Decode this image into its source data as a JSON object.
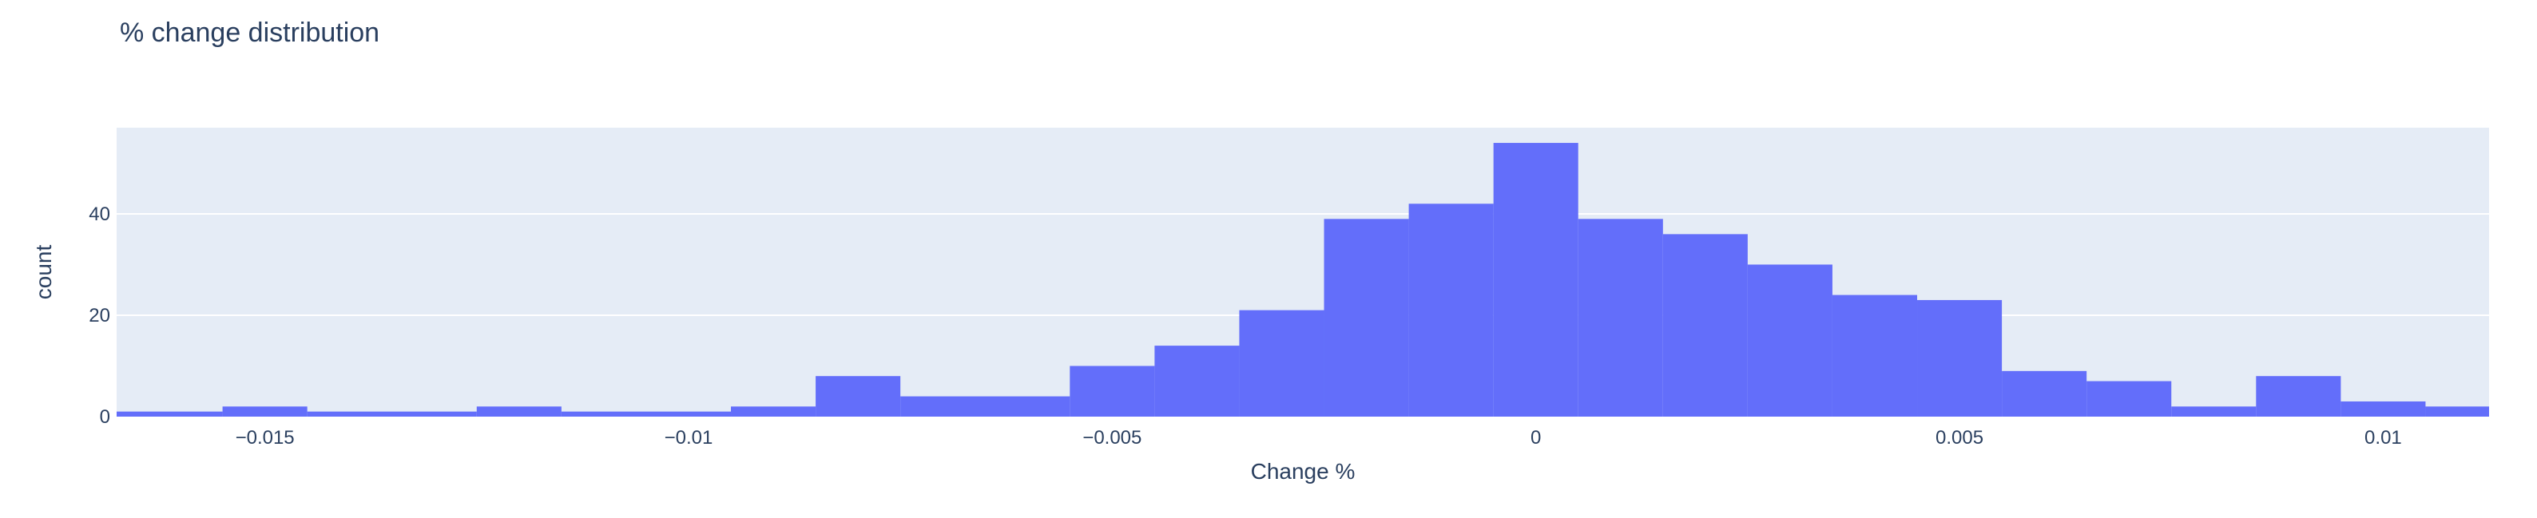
{
  "chart_data": {
    "type": "bar",
    "title": "% change distribution",
    "xlabel": "Change %",
    "ylabel": "count",
    "bin_width": 0.001,
    "xlim": [
      -0.01675,
      0.01125
    ],
    "ylim": [
      0,
      57
    ],
    "x_ticks": [
      -0.015,
      -0.01,
      -0.005,
      0,
      0.005,
      0.01
    ],
    "x_tick_labels": [
      "−0.015",
      "−0.01",
      "−0.005",
      "0",
      "0.005",
      "0.01"
    ],
    "y_ticks": [
      0,
      20,
      40
    ],
    "y_tick_labels": [
      "0",
      "20",
      "40"
    ],
    "grid": true,
    "bins": [
      {
        "x0": -0.0175,
        "x1": -0.0155,
        "count": 1
      },
      {
        "x0": -0.0155,
        "x1": -0.0145,
        "count": 2
      },
      {
        "x0": -0.0145,
        "x1": -0.0125,
        "count": 1
      },
      {
        "x0": -0.0125,
        "x1": -0.0115,
        "count": 2
      },
      {
        "x0": -0.0115,
        "x1": -0.0095,
        "count": 1
      },
      {
        "x0": -0.0095,
        "x1": -0.0085,
        "count": 2
      },
      {
        "x0": -0.0085,
        "x1": -0.0075,
        "count": 8
      },
      {
        "x0": -0.0075,
        "x1": -0.0055,
        "count": 4
      },
      {
        "x0": -0.0055,
        "x1": -0.0045,
        "count": 10
      },
      {
        "x0": -0.0045,
        "x1": -0.0035,
        "count": 14
      },
      {
        "x0": -0.0035,
        "x1": -0.0025,
        "count": 21
      },
      {
        "x0": -0.0025,
        "x1": -0.0015,
        "count": 39
      },
      {
        "x0": -0.0015,
        "x1": -0.0005,
        "count": 42
      },
      {
        "x0": -0.0005,
        "x1": 0.0005,
        "count": 54
      },
      {
        "x0": 0.0005,
        "x1": 0.0015,
        "count": 39
      },
      {
        "x0": 0.0015,
        "x1": 0.0025,
        "count": 36
      },
      {
        "x0": 0.0025,
        "x1": 0.0035,
        "count": 30
      },
      {
        "x0": 0.0035,
        "x1": 0.0045,
        "count": 24
      },
      {
        "x0": 0.0045,
        "x1": 0.0055,
        "count": 23
      },
      {
        "x0": 0.0055,
        "x1": 0.0065,
        "count": 9
      },
      {
        "x0": 0.0065,
        "x1": 0.0075,
        "count": 7
      },
      {
        "x0": 0.0075,
        "x1": 0.0085,
        "count": 2
      },
      {
        "x0": 0.0085,
        "x1": 0.0095,
        "count": 8
      },
      {
        "x0": 0.0095,
        "x1": 0.0105,
        "count": 3
      },
      {
        "x0": 0.0105,
        "x1": 0.0115,
        "count": 2
      }
    ],
    "colors": {
      "bar": "#636efa",
      "plot_bg": "#e5ecf6",
      "grid": "#ffffff",
      "text": "#2a3f5f"
    }
  }
}
